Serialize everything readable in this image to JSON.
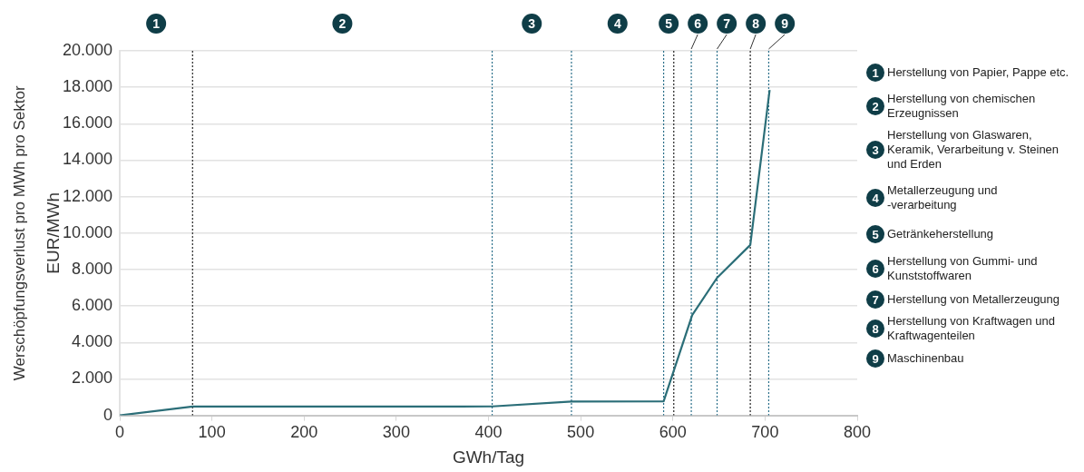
{
  "chart_data": {
    "type": "line",
    "xlabel": "GWh/Tag",
    "ylabel": "Werschöpfungsverlust pro MWh pro Sektor\nEUR/MWh",
    "x": [
      0,
      79,
      404,
      490,
      590,
      621,
      648,
      684,
      705
    ],
    "series": [
      {
        "color": "#2b6e78",
        "values": [
          0,
          480,
          490,
          760,
          770,
          5500,
          7550,
          9350,
          17850
        ]
      }
    ],
    "xlim": [
      0,
      800
    ],
    "xticks": [
      0,
      100,
      200,
      300,
      400,
      500,
      600,
      700,
      800
    ],
    "ylim": [
      0,
      20000
    ],
    "yticks": [
      {
        "value": 0,
        "label": "0"
      },
      {
        "value": 2000,
        "label": "2.000"
      },
      {
        "value": 4000,
        "label": "4.000"
      },
      {
        "value": 6000,
        "label": "6.000"
      },
      {
        "value": 8000,
        "label": "8.000"
      },
      {
        "value": 10000,
        "label": "10.000"
      },
      {
        "value": 12000,
        "label": "12.000"
      },
      {
        "value": 14000,
        "label": "14.000"
      },
      {
        "value": 16000,
        "label": "16.000"
      },
      {
        "value": 18000,
        "label": "18.000"
      },
      {
        "value": 20000,
        "label": "20.000"
      }
    ],
    "grid": "y",
    "legend": false,
    "marker": "none",
    "line_style": "solid",
    "ref_lines": [
      {
        "axis": "x",
        "value": 79,
        "color": "#222222",
        "line_style": "dotted"
      },
      {
        "axis": "x",
        "value": 404,
        "color": "#2a6f8a",
        "line_style": "dotted"
      },
      {
        "axis": "x",
        "value": 490,
        "color": "#2a6f8a",
        "line_style": "dotted"
      },
      {
        "axis": "x",
        "value": 590,
        "color": "#2a6f8a",
        "line_style": "dotted"
      },
      {
        "axis": "x",
        "value": 601,
        "color": "#222222",
        "line_style": "dotted"
      },
      {
        "axis": "x",
        "value": 620,
        "color": "#2a6f8a",
        "line_style": "dotted"
      },
      {
        "axis": "x",
        "value": 648,
        "color": "#2a6f8a",
        "line_style": "dotted"
      },
      {
        "axis": "x",
        "value": 684,
        "color": "#222222",
        "line_style": "dotted"
      },
      {
        "axis": "x",
        "value": 704,
        "color": "#2a6f8a",
        "line_style": "dotted"
      }
    ],
    "annotations": [
      "1",
      "2",
      "3",
      "4",
      "5",
      "6",
      "7",
      "8",
      "9",
      "Herstellung von Papier, Pappe etc.",
      "Herstellung von chemischen\nErzeugnissen",
      "Herstellung von Glaswaren,\nKeramik, Verarbeitung v. Steinen\nund Erden",
      "Metallerzeugung und\n-verarbeitung",
      "Getränkeherstellung",
      "Herstellung von Gummi- und\nKunststoffwaren",
      "Herstellung von Metallerzeugung",
      "Herstellung von Kraftwagen und\nKraftwagenteilen",
      "Maschinenbau"
    ]
  }
}
